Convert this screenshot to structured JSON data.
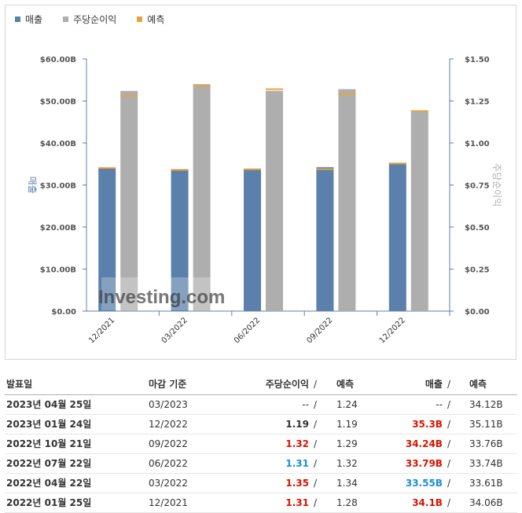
{
  "legend": [
    {
      "label": "매출",
      "color": "#5b80ab"
    },
    {
      "label": "주당순이익",
      "color": "#aeaeae"
    },
    {
      "label": "예측",
      "color": "#e8a33c"
    }
  ],
  "chart_data": {
    "type": "bar",
    "categories": [
      "12/2021",
      "03/2022",
      "06/2022",
      "09/2022",
      "12/2022"
    ],
    "series": [
      {
        "name": "매출",
        "axis": "left",
        "values": [
          34.1,
          33.55,
          33.79,
          34.24,
          35.3
        ],
        "forecast": [
          34.06,
          33.61,
          33.74,
          33.76,
          35.11
        ]
      },
      {
        "name": "주당순이익",
        "axis": "right",
        "values": [
          1.31,
          1.35,
          1.31,
          1.32,
          1.19
        ],
        "forecast": [
          1.28,
          1.34,
          1.32,
          1.29,
          1.19
        ]
      }
    ],
    "y_left": {
      "label": "매출",
      "ticks": [
        "$0.00",
        "$10.00B",
        "$20.00B",
        "$30.00B",
        "$40.00B",
        "$50.00B",
        "$60.00B"
      ],
      "range": [
        0,
        60
      ]
    },
    "y_right": {
      "label": "주당순이익",
      "ticks": [
        "$0.00",
        "$0.25",
        "$0.50",
        "$0.75",
        "$1.00",
        "$1.25",
        "$1.50"
      ],
      "range": [
        0,
        1.5
      ]
    },
    "watermark": "Investing.com",
    "grid": false,
    "legend_position": "top-left"
  },
  "colors": {
    "revenue": "#5b80ab",
    "eps": "#aeaeae",
    "forecast": "#e8a33c",
    "beat": "#d91400",
    "miss": "#1a8fd4"
  },
  "table": {
    "headers": {
      "date": "발표일",
      "period": "마감 기준",
      "eps": "주당순이익",
      "eps_forecast": "예측",
      "revenue": "매출",
      "revenue_forecast": "예측"
    },
    "rows": [
      {
        "date": "2023년 04월 25일",
        "period": "03/2023",
        "eps": "--",
        "eps_status": "neutral",
        "eps_forecast": "1.24",
        "revenue": "--",
        "revenue_status": "neutral",
        "revenue_forecast": "34.12B"
      },
      {
        "date": "2023년 01월 24일",
        "period": "12/2022",
        "eps": "1.19",
        "eps_status": "equal",
        "eps_forecast": "1.19",
        "revenue": "35.3B",
        "revenue_status": "beat",
        "revenue_forecast": "35.11B"
      },
      {
        "date": "2022년 10월 21일",
        "period": "09/2022",
        "eps": "1.32",
        "eps_status": "beat",
        "eps_forecast": "1.29",
        "revenue": "34.24B",
        "revenue_status": "beat",
        "revenue_forecast": "33.76B"
      },
      {
        "date": "2022년 07월 22일",
        "period": "06/2022",
        "eps": "1.31",
        "eps_status": "miss",
        "eps_forecast": "1.32",
        "revenue": "33.79B",
        "revenue_status": "beat",
        "revenue_forecast": "33.74B"
      },
      {
        "date": "2022년 04월 22일",
        "period": "03/2022",
        "eps": "1.35",
        "eps_status": "beat",
        "eps_forecast": "1.34",
        "revenue": "33.55B",
        "revenue_status": "miss",
        "revenue_forecast": "33.61B"
      },
      {
        "date": "2022년 01월 25일",
        "period": "12/2021",
        "eps": "1.31",
        "eps_status": "beat",
        "eps_forecast": "1.28",
        "revenue": "34.1B",
        "revenue_status": "beat",
        "revenue_forecast": "34.06B"
      }
    ]
  }
}
